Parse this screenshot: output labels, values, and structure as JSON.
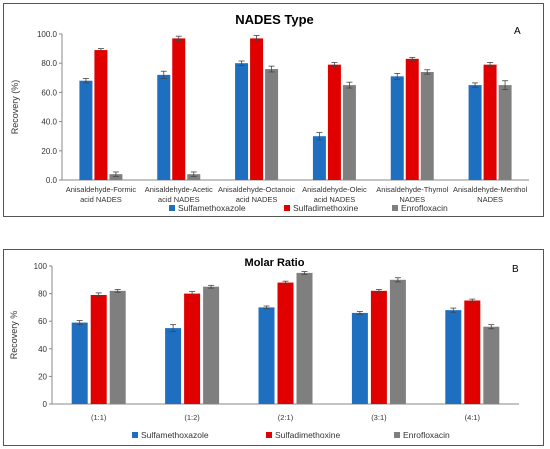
{
  "chart_data": [
    {
      "type": "bar",
      "title": "NADES Type",
      "panel_label": "A",
      "ylabel": "Recovery (%)",
      "xlabel": "",
      "ylim": [
        0,
        100
      ],
      "yticks": [
        "0.0",
        "20.0",
        "40.0",
        "60.0",
        "80.0",
        "100.0"
      ],
      "categories": [
        [
          "Anisaldehyde-Formic",
          "acid NADES"
        ],
        [
          "Anisaldehyde-Acetic",
          "acid NADES"
        ],
        [
          "Anisaldehyde-Octanoic",
          "acid NADES"
        ],
        [
          "Anisaldehyde-Oleic",
          "acid NADES"
        ],
        [
          "Anisaldehyde-Thymol",
          "NADES"
        ],
        [
          "Anisaldehyde-Menthol",
          "NADES"
        ]
      ],
      "series": [
        {
          "name": "Sulfamethoxazole",
          "color": "#1f6fc1",
          "values": [
            68,
            72,
            80,
            30,
            71,
            65
          ],
          "errors": [
            1.5,
            2.5,
            1.5,
            2.5,
            2,
            1.5
          ]
        },
        {
          "name": "Sulfadimethoxine",
          "color": "#e00000",
          "values": [
            89,
            97,
            97,
            79,
            83,
            79
          ],
          "errors": [
            1,
            1.5,
            2,
            1.5,
            1,
            1.5
          ]
        },
        {
          "name": "Enrofloxacin",
          "color": "#7f7f7f",
          "values": [
            4,
            4,
            76,
            65,
            74,
            65
          ],
          "errors": [
            1.5,
            1.5,
            2,
            2,
            1.5,
            3
          ]
        }
      ],
      "legend": [
        "Sulfamethoxazole",
        "Sulfadimethoxine",
        "Enrofloxacin"
      ],
      "legend_position": "bottom",
      "grid": false
    },
    {
      "type": "bar",
      "title": "Molar Ratio",
      "panel_label": "B",
      "ylabel": "Recovery %",
      "xlabel": "",
      "ylim": [
        0,
        100
      ],
      "yticks": [
        "0",
        "20",
        "40",
        "60",
        "80",
        "100"
      ],
      "categories": [
        [
          "(1:1)"
        ],
        [
          "(1:2)"
        ],
        [
          "(2:1)"
        ],
        [
          "(3:1)"
        ],
        [
          "(4:1)"
        ]
      ],
      "series": [
        {
          "name": "Sulfamethoxazole",
          "color": "#1f6fc1",
          "values": [
            59,
            55,
            70,
            66,
            68
          ],
          "errors": [
            1.5,
            2.5,
            1,
            1,
            1.5
          ]
        },
        {
          "name": "Sulfadimethoxine",
          "color": "#e00000",
          "values": [
            79,
            80,
            88,
            82,
            75
          ],
          "errors": [
            1.5,
            1.5,
            1,
            1,
            1
          ]
        },
        {
          "name": "Enrofloxacin",
          "color": "#7f7f7f",
          "values": [
            82,
            85,
            95,
            90,
            56
          ],
          "errors": [
            1,
            1,
            1,
            1.5,
            1.5
          ]
        }
      ],
      "legend": [
        "Sulfamethoxazole",
        "Sulfadimethoxine",
        "Enrofloxacin"
      ],
      "legend_position": "bottom",
      "grid": false
    }
  ]
}
